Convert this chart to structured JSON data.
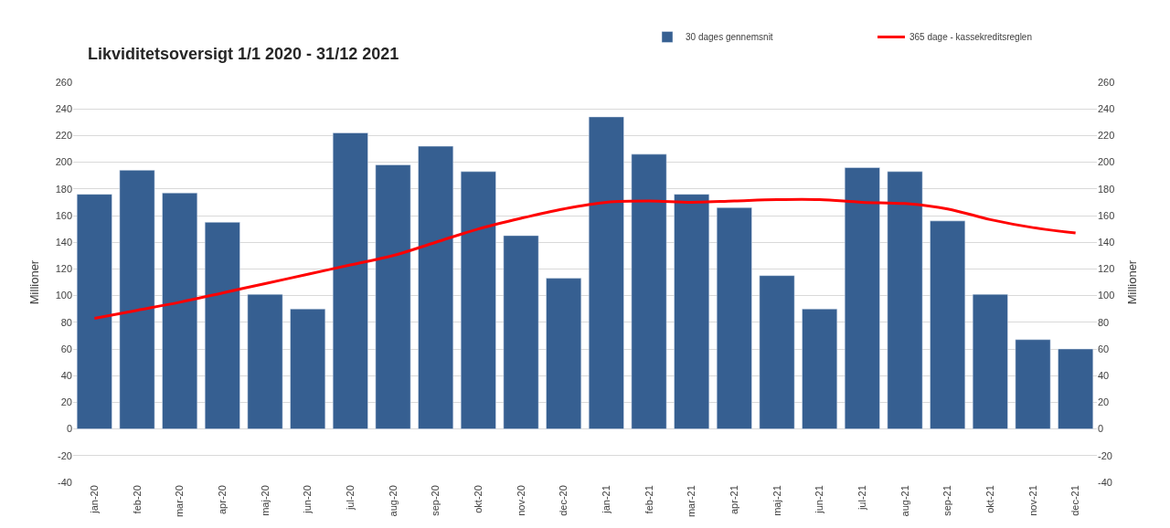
{
  "chart_data": {
    "type": "bar",
    "title": "Likviditetsoversigt 1/1 2020 - 31/12 2021",
    "categories": [
      "jan-20",
      "feb-20",
      "mar-20",
      "apr-20",
      "maj-20",
      "jun-20",
      "jul-20",
      "aug-20",
      "sep-20",
      "okt-20",
      "nov-20",
      "dec-20",
      "jan-21",
      "feb-21",
      "mar-21",
      "apr-21",
      "maj-21",
      "jun-21",
      "jul-21",
      "aug-21",
      "sep-21",
      "okt-21",
      "nov-21",
      "dec-21"
    ],
    "series": [
      {
        "name": "30 dages gennemsnit",
        "color": "#365f91",
        "values": [
          176,
          194,
          177,
          155,
          101,
          90,
          222,
          198,
          212,
          193,
          145,
          113,
          234,
          206,
          176,
          166,
          115,
          90,
          196,
          193,
          156,
          101,
          67,
          60
        ]
      },
      {
        "name": "365 dage - kassekreditsreglen",
        "type": "line",
        "axis": "y2",
        "color": "#ff0000",
        "values": [
          83,
          89,
          95,
          102,
          109,
          116,
          123,
          130,
          140,
          150,
          158,
          165,
          170,
          171,
          170,
          171,
          172,
          172,
          170,
          169,
          165,
          157,
          151,
          147
        ]
      }
    ],
    "ylabel": "Millioner",
    "y2label": "Millioner",
    "ylim": [
      -40,
      260
    ],
    "yticks": [
      -40,
      -20,
      0,
      20,
      40,
      60,
      80,
      100,
      120,
      140,
      160,
      180,
      200,
      220,
      240,
      260
    ],
    "y2lim": [
      -40,
      260
    ],
    "y2ticks": [
      -40,
      -20,
      0,
      20,
      40,
      60,
      80,
      100,
      120,
      140,
      160,
      180,
      200,
      220,
      240,
      260
    ],
    "grid": "y",
    "legend": "top right",
    "marker": "none",
    "line_style": "solid"
  }
}
